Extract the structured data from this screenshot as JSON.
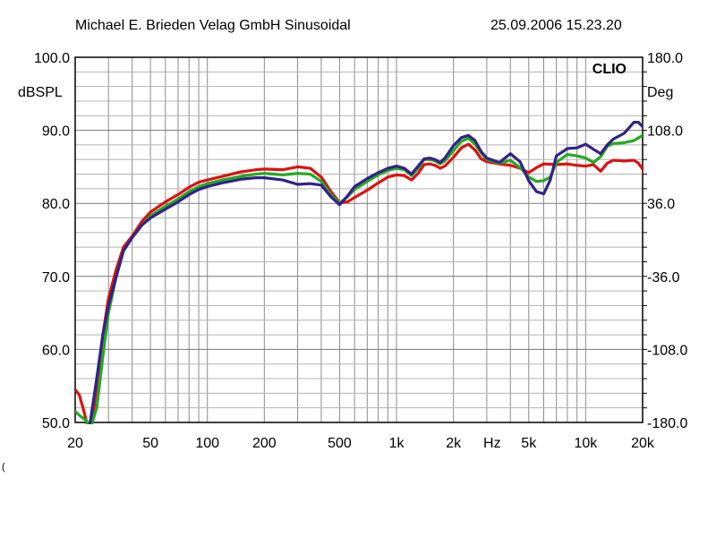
{
  "header": {
    "left": "Michael E. Brieden Velag GmbH Sinusoidal",
    "right": "25.09.2006 15.23.20"
  },
  "stray_mark": "(",
  "chart_data": {
    "type": "line",
    "title": "",
    "brand": "CLIO",
    "ylabel": "dBSPL",
    "ylabel_right": "Deg",
    "xscale": "log",
    "xlim": [
      20,
      20000
    ],
    "ylim": [
      50,
      100
    ],
    "ylim_right": [
      -180,
      180
    ],
    "grid": true,
    "legend": "none",
    "y_ticks": [
      "100.0",
      "90.0",
      "80.0",
      "70.0",
      "60.0",
      "50.0"
    ],
    "y_ticks_right": [
      "180.0",
      "108.0",
      "36.0",
      "-36.0",
      "-108.0",
      "-180.0"
    ],
    "x_ticks": [
      {
        "value": 20,
        "label": "20"
      },
      {
        "value": 50,
        "label": "50"
      },
      {
        "value": 100,
        "label": "100"
      },
      {
        "value": 200,
        "label": "200"
      },
      {
        "value": 500,
        "label": "500"
      },
      {
        "value": 1000,
        "label": "1k"
      },
      {
        "value": 2000,
        "label": "2k"
      },
      {
        "value": 5000,
        "label": "5k"
      },
      {
        "value": 10000,
        "label": "10k"
      },
      {
        "value": 20000,
        "label": "20k"
      }
    ],
    "x_unit_label": "Hz",
    "x_unit_at": 3200,
    "series": [
      {
        "color": "#dd1111",
        "points": [
          [
            20,
            54.5
          ],
          [
            21,
            53.8
          ],
          [
            22,
            52
          ],
          [
            23,
            50
          ],
          [
            24,
            48
          ],
          [
            26,
            55
          ],
          [
            28,
            62
          ],
          [
            30,
            67
          ],
          [
            33,
            71
          ],
          [
            36,
            74
          ],
          [
            40,
            75.5
          ],
          [
            45,
            77.5
          ],
          [
            50,
            78.8
          ],
          [
            60,
            80.2
          ],
          [
            70,
            81.2
          ],
          [
            80,
            82.2
          ],
          [
            90,
            82.9
          ],
          [
            100,
            83.2
          ],
          [
            120,
            83.7
          ],
          [
            150,
            84.3
          ],
          [
            180,
            84.6
          ],
          [
            200,
            84.7
          ],
          [
            250,
            84.6
          ],
          [
            300,
            85
          ],
          [
            350,
            84.8
          ],
          [
            400,
            83.6
          ],
          [
            450,
            81.6
          ],
          [
            500,
            80.1
          ],
          [
            550,
            80.2
          ],
          [
            600,
            80.8
          ],
          [
            700,
            81.8
          ],
          [
            800,
            82.8
          ],
          [
            900,
            83.6
          ],
          [
            1000,
            83.9
          ],
          [
            1100,
            83.8
          ],
          [
            1200,
            83.2
          ],
          [
            1300,
            84.1
          ],
          [
            1400,
            85.3
          ],
          [
            1500,
            85.4
          ],
          [
            1600,
            85.2
          ],
          [
            1700,
            84.8
          ],
          [
            1800,
            85.1
          ],
          [
            2000,
            86.3
          ],
          [
            2200,
            87.6
          ],
          [
            2400,
            88.1
          ],
          [
            2600,
            87.3
          ],
          [
            2800,
            86.1
          ],
          [
            3000,
            85.7
          ],
          [
            3500,
            85.4
          ],
          [
            4000,
            85.2
          ],
          [
            4500,
            84.8
          ],
          [
            5000,
            84.2
          ],
          [
            5500,
            84.9
          ],
          [
            6000,
            85.4
          ],
          [
            7000,
            85.3
          ],
          [
            8000,
            85.4
          ],
          [
            9000,
            85.2
          ],
          [
            10000,
            85.1
          ],
          [
            11000,
            85.3
          ],
          [
            12000,
            84.4
          ],
          [
            13000,
            85.5
          ],
          [
            14000,
            85.9
          ],
          [
            16000,
            85.8
          ],
          [
            18000,
            85.9
          ],
          [
            19000,
            85.5
          ],
          [
            20000,
            84.7
          ],
          [
            21000,
            82.5
          ],
          [
            22000,
            81.8
          ]
        ]
      },
      {
        "color": "#22aa22",
        "points": [
          [
            20,
            51.5
          ],
          [
            21,
            51
          ],
          [
            22,
            50.6
          ],
          [
            23,
            50.2
          ],
          [
            24,
            49
          ],
          [
            26,
            52
          ],
          [
            28,
            59
          ],
          [
            30,
            65
          ],
          [
            33,
            70
          ],
          [
            36,
            73.5
          ],
          [
            40,
            75.3
          ],
          [
            45,
            77
          ],
          [
            50,
            78.3
          ],
          [
            60,
            79.6
          ],
          [
            70,
            80.6
          ],
          [
            80,
            81.6
          ],
          [
            90,
            82.3
          ],
          [
            100,
            82.7
          ],
          [
            120,
            83.2
          ],
          [
            150,
            83.7
          ],
          [
            180,
            84
          ],
          [
            200,
            84.1
          ],
          [
            250,
            83.9
          ],
          [
            300,
            84.1
          ],
          [
            350,
            84
          ],
          [
            400,
            83
          ],
          [
            450,
            81.2
          ],
          [
            500,
            80
          ],
          [
            550,
            80.9
          ],
          [
            600,
            81.9
          ],
          [
            700,
            83
          ],
          [
            800,
            83.9
          ],
          [
            900,
            84.5
          ],
          [
            1000,
            84.8
          ],
          [
            1100,
            84.6
          ],
          [
            1200,
            83.8
          ],
          [
            1300,
            84.8
          ],
          [
            1400,
            86
          ],
          [
            1500,
            86
          ],
          [
            1600,
            85.8
          ],
          [
            1700,
            85.4
          ],
          [
            1800,
            85.8
          ],
          [
            2000,
            87.2
          ],
          [
            2200,
            88.5
          ],
          [
            2400,
            88.9
          ],
          [
            2600,
            88.1
          ],
          [
            2800,
            86.9
          ],
          [
            3000,
            86
          ],
          [
            3500,
            85.5
          ],
          [
            4000,
            85.9
          ],
          [
            4500,
            84.9
          ],
          [
            5000,
            83.6
          ],
          [
            5500,
            83
          ],
          [
            6000,
            83.1
          ],
          [
            6500,
            83.6
          ],
          [
            7000,
            85.6
          ],
          [
            8000,
            86.7
          ],
          [
            9000,
            86.5
          ],
          [
            10000,
            86.2
          ],
          [
            11000,
            85.6
          ],
          [
            12000,
            86.4
          ],
          [
            13000,
            87.8
          ],
          [
            14000,
            88.2
          ],
          [
            16000,
            88.3
          ],
          [
            18000,
            88.6
          ],
          [
            20000,
            89.3
          ],
          [
            22000,
            89.1
          ]
        ]
      },
      {
        "color": "#332288",
        "points": [
          [
            20,
            49.5
          ],
          [
            21,
            49
          ],
          [
            22,
            48.5
          ],
          [
            23,
            48.2
          ],
          [
            24,
            50
          ],
          [
            26,
            56
          ],
          [
            28,
            62
          ],
          [
            30,
            66
          ],
          [
            33,
            70
          ],
          [
            36,
            73.5
          ],
          [
            40,
            75.3
          ],
          [
            45,
            77
          ],
          [
            50,
            78
          ],
          [
            60,
            79.2
          ],
          [
            70,
            80.2
          ],
          [
            80,
            81.2
          ],
          [
            90,
            81.9
          ],
          [
            100,
            82.3
          ],
          [
            120,
            82.8
          ],
          [
            150,
            83.3
          ],
          [
            180,
            83.5
          ],
          [
            200,
            83.5
          ],
          [
            250,
            83.2
          ],
          [
            300,
            82.6
          ],
          [
            350,
            82.7
          ],
          [
            400,
            82.5
          ],
          [
            450,
            80.9
          ],
          [
            500,
            79.8
          ],
          [
            550,
            81
          ],
          [
            600,
            82.3
          ],
          [
            700,
            83.4
          ],
          [
            800,
            84.2
          ],
          [
            900,
            84.8
          ],
          [
            1000,
            85.1
          ],
          [
            1100,
            84.8
          ],
          [
            1200,
            84
          ],
          [
            1300,
            85.1
          ],
          [
            1400,
            86.1
          ],
          [
            1500,
            86.2
          ],
          [
            1600,
            86
          ],
          [
            1700,
            85.6
          ],
          [
            1800,
            86.2
          ],
          [
            2000,
            87.9
          ],
          [
            2200,
            89
          ],
          [
            2400,
            89.3
          ],
          [
            2600,
            88.6
          ],
          [
            2800,
            87.1
          ],
          [
            3000,
            86.2
          ],
          [
            3500,
            85.6
          ],
          [
            4000,
            86.8
          ],
          [
            4500,
            85.7
          ],
          [
            5000,
            83.1
          ],
          [
            5500,
            81.6
          ],
          [
            6000,
            81.3
          ],
          [
            6500,
            83.2
          ],
          [
            7000,
            86.5
          ],
          [
            8000,
            87.5
          ],
          [
            9000,
            87.6
          ],
          [
            10000,
            88.1
          ],
          [
            11000,
            87.4
          ],
          [
            12000,
            86.8
          ],
          [
            13000,
            88
          ],
          [
            14000,
            88.8
          ],
          [
            16000,
            89.6
          ],
          [
            18000,
            91.1
          ],
          [
            19000,
            91.1
          ],
          [
            20000,
            90.5
          ],
          [
            22000,
            91
          ]
        ]
      }
    ]
  }
}
